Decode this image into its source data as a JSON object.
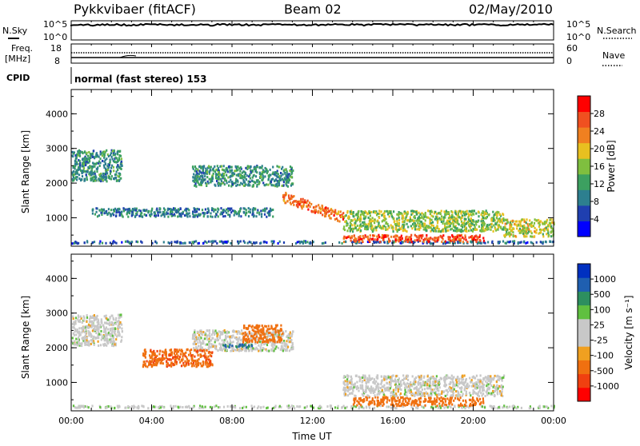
{
  "header": {
    "station": "Pykkvibaer (fitACF)",
    "beam": "Beam 02",
    "date": "02/May/2010"
  },
  "top_panels": {
    "nsky_label": "N.Sky",
    "nsky_top": "10^5",
    "nsky_bottom": "10^0",
    "nsearch_label": "N.Search",
    "nsearch_top": "10^5",
    "nsearch_bottom": "10^0",
    "freq_label_1": "Freq.",
    "freq_label_2": "[MHz]",
    "freq_top": "18",
    "freq_bottom": "8",
    "nave_label": "Nave",
    "nave_top": "60",
    "nave_bottom": "0",
    "cpid_label": "CPID",
    "cpid_text": "normal (fast stereo) 153"
  },
  "colors": {
    "power_scale": [
      "#0000ff",
      "#1f3fb0",
      "#2d7f8f",
      "#3ca060",
      "#7fbf3f",
      "#e8c020",
      "#f08020",
      "#f05020",
      "#ff0000"
    ],
    "velocity_scale": [
      "#ff0000",
      "#f04010",
      "#f07010",
      "#f0a020",
      "#c8c8c8",
      "#c8c8c8",
      "#60c040",
      "#2d8f5f",
      "#1f5fb0",
      "#0030c0"
    ]
  },
  "chart_data": [
    {
      "type": "heatmap",
      "name": "power",
      "xlabel": "",
      "ylabel": "Slant Range [km]",
      "x_ticks": [
        "00:00",
        "04:00",
        "08:00",
        "12:00",
        "16:00",
        "20:00",
        "00:00"
      ],
      "y_ticks": [
        1000,
        2000,
        3000,
        4000
      ],
      "ylim": [
        180,
        4700
      ],
      "xlim_hours": [
        0,
        24
      ],
      "colorbar": {
        "label": "Power [dB]",
        "ticks": [
          "4",
          "8",
          "12",
          "16",
          "20",
          "24",
          "28"
        ],
        "range": [
          0,
          32
        ]
      },
      "features": [
        {
          "t_start": 0.0,
          "t_end": 24.0,
          "r_center": 290,
          "width": 70,
          "value": 8
        },
        {
          "t_start": 13.5,
          "t_end": 20.5,
          "r_center": 400,
          "width": 200,
          "value": 30
        },
        {
          "t_start": 13.5,
          "t_end": 21.5,
          "r_center": 900,
          "width": 600,
          "value": 18
        },
        {
          "t_start": 10.5,
          "t_end": 13.5,
          "r_center_start": 1600,
          "r_center_end": 1000,
          "width": 300,
          "value": 28
        },
        {
          "t_start": 6.0,
          "t_end": 11.0,
          "r_center": 2200,
          "width": 600,
          "value": 12
        },
        {
          "t_start": 0.0,
          "t_end": 2.5,
          "r_center": 2500,
          "width": 900,
          "value": 12
        },
        {
          "t_start": 1.0,
          "t_end": 10.0,
          "r_center": 1150,
          "width": 250,
          "value": 10
        },
        {
          "t_start": 21.5,
          "t_end": 24.0,
          "r_center": 700,
          "width": 500,
          "value": 20
        }
      ]
    },
    {
      "type": "heatmap",
      "name": "velocity",
      "xlabel": "Time UT",
      "ylabel": "Slant Range [km]",
      "x_ticks": [
        "00:00",
        "04:00",
        "08:00",
        "12:00",
        "16:00",
        "20:00",
        "00:00"
      ],
      "y_ticks": [
        1000,
        2000,
        3000,
        4000
      ],
      "ylim": [
        180,
        4700
      ],
      "xlim_hours": [
        0,
        24
      ],
      "colorbar": {
        "label": "Velocity [m s⁻¹]",
        "ticks": [
          "-1000",
          "-500",
          "-100",
          "-25",
          "25",
          "100",
          "500",
          "1000"
        ]
      },
      "features": [
        {
          "t_start": 0.0,
          "t_end": 24.0,
          "r_center": 290,
          "width": 70,
          "value": 10
        },
        {
          "t_start": 14.0,
          "t_end": 20.5,
          "r_center": 450,
          "width": 250,
          "value": -300
        },
        {
          "t_start": 13.5,
          "t_end": 21.5,
          "r_center": 900,
          "width": 600,
          "value": 0
        },
        {
          "t_start": 6.0,
          "t_end": 11.0,
          "r_center": 2200,
          "width": 600,
          "value": 0
        },
        {
          "t_start": 0.0,
          "t_end": 2.5,
          "r_center": 2500,
          "width": 900,
          "value": 0
        },
        {
          "t_start": 3.5,
          "t_end": 7.0,
          "r_center": 1700,
          "width": 500,
          "value": -400
        },
        {
          "t_start": 8.5,
          "t_end": 10.5,
          "r_center": 2400,
          "width": 500,
          "value": -300
        },
        {
          "t_start": 7.5,
          "t_end": 9.0,
          "r_center": 2050,
          "width": 100,
          "value": 600
        }
      ]
    }
  ]
}
